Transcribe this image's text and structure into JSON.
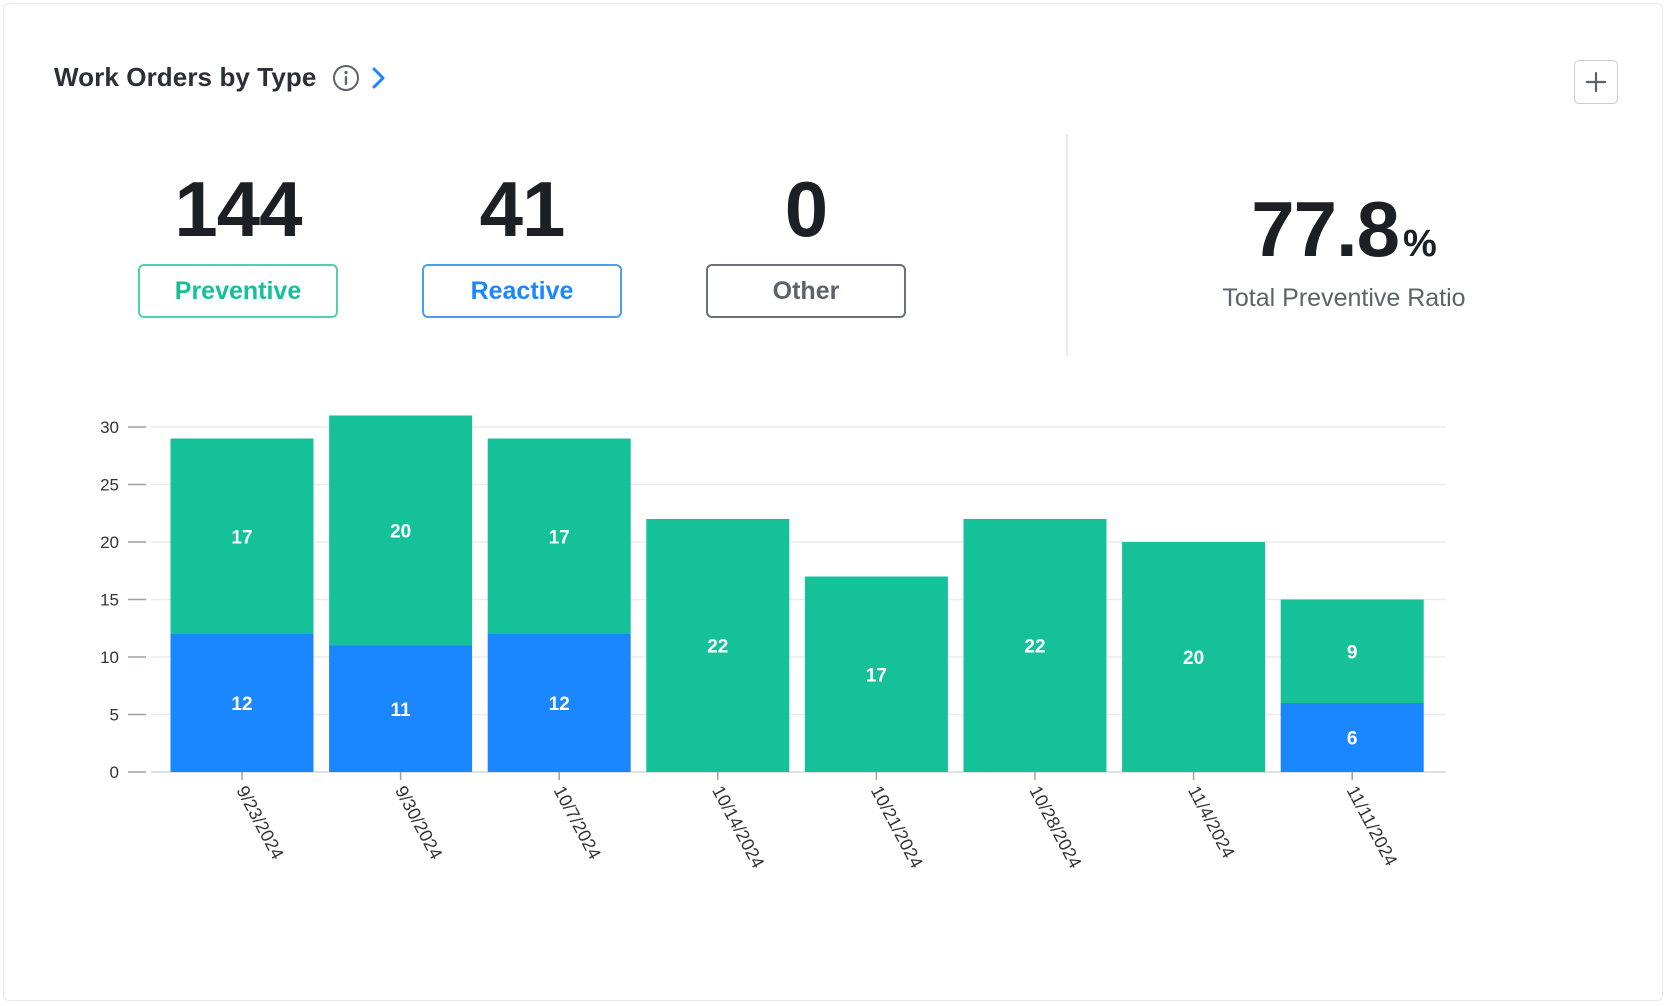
{
  "header": {
    "title": "Work Orders by Type"
  },
  "stats": [
    {
      "value": "144",
      "label": "Preventive",
      "color": "#16c096"
    },
    {
      "value": "41",
      "label": "Reactive",
      "color": "#1a86ff"
    },
    {
      "value": "0",
      "label": "Other",
      "color": "#5d636b"
    }
  ],
  "ratio": {
    "value": "77.8",
    "unit": "%",
    "label": "Total Preventive Ratio"
  },
  "colors": {
    "preventive": "#14c198",
    "reactive": "#1a86ff",
    "accent": "#1a86ff"
  },
  "chart_data": {
    "type": "bar",
    "stacked": true,
    "categories": [
      "9/23/2024",
      "9/30/2024",
      "10/7/2024",
      "10/14/2024",
      "10/21/2024",
      "10/28/2024",
      "11/4/2024",
      "11/11/2024"
    ],
    "series": [
      {
        "key": "reactive",
        "values": [
          12,
          11,
          12,
          0,
          0,
          0,
          0,
          6
        ]
      },
      {
        "key": "preventive",
        "values": [
          17,
          20,
          17,
          22,
          17,
          22,
          20,
          9
        ]
      }
    ],
    "ylim": [
      0,
      30
    ],
    "yticks": [
      0,
      5,
      10,
      15,
      20,
      25,
      30
    ],
    "grid": true,
    "data_labels": true
  }
}
